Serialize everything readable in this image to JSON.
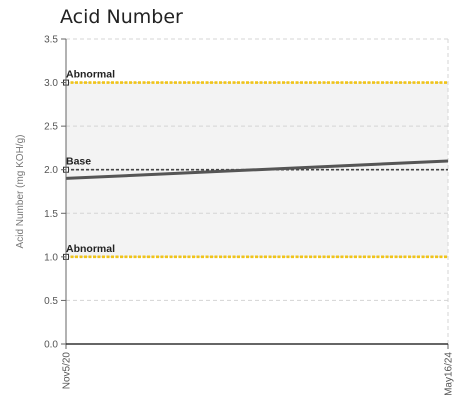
{
  "chart_data": {
    "type": "line",
    "title": "Acid Number",
    "ylabel": "Acid Number (mg KOH/g)",
    "xlabel": "",
    "ylim": [
      0,
      3.5
    ],
    "yticks": [
      "0.0",
      "0.5",
      "1.0",
      "1.5",
      "2.0",
      "2.5",
      "3.0",
      "3.5"
    ],
    "categories": [
      "Nov5/20",
      "May16/24"
    ],
    "series": [
      {
        "values": [
          1.9,
          2.1
        ],
        "color": "#555555"
      }
    ],
    "reference_lines": [
      {
        "label": "Abnormal",
        "value": 3.0,
        "color": "#f0c419"
      },
      {
        "label": "Base",
        "value": 2.0,
        "color": "#444444"
      },
      {
        "label": "Abnormal",
        "value": 1.0,
        "color": "#f0c419"
      }
    ],
    "shaded_band": [
      1.0,
      3.0
    ],
    "grid": true
  }
}
